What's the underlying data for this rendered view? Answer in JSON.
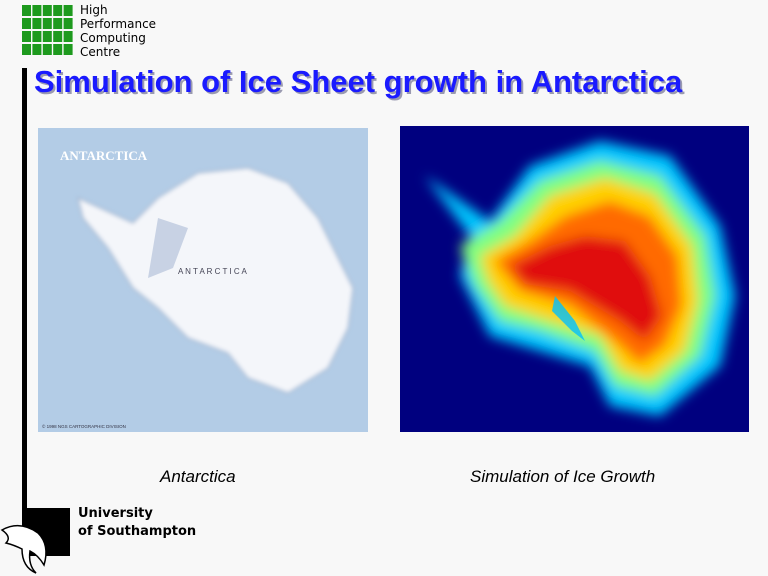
{
  "logo": {
    "lines": [
      "High",
      "Performance",
      "Computing",
      "Centre"
    ]
  },
  "title": "Simulation of Ice Sheet growth in Antarctica",
  "map": {
    "heading": "ANTARCTICA",
    "label": "A N T A R C T I C A",
    "credit": "© 1998 NGS CARTOGRAPHIC DIVISION"
  },
  "captions": [
    "Antarctica",
    "Simulation of Ice Growth"
  ],
  "university": {
    "lines": [
      "University",
      "of Southampton"
    ]
  }
}
